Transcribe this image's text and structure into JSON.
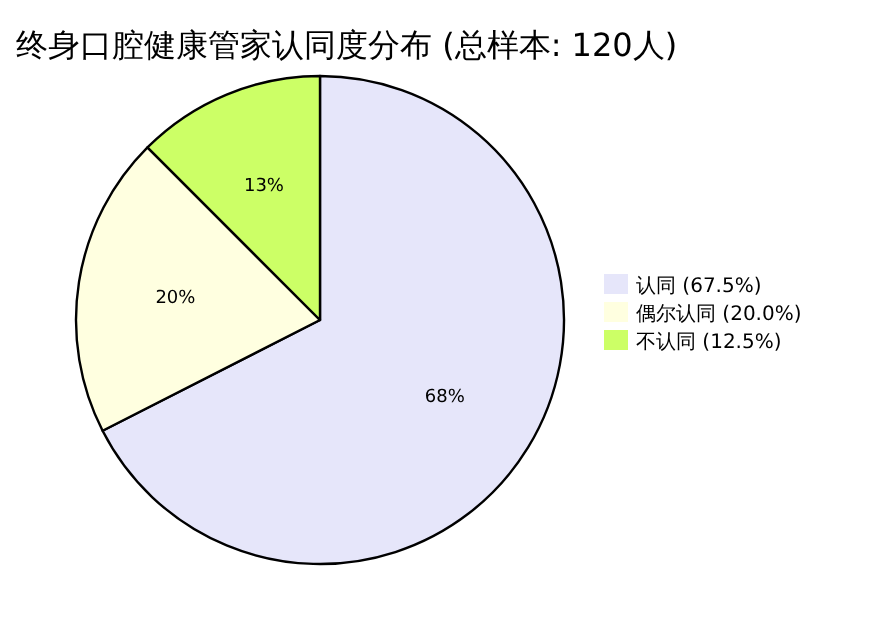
{
  "chart_data": {
    "type": "pie",
    "title": "终身口腔健康管家认同度分布 (总样本: 120人)",
    "categories": [
      "认同 (67.5%)",
      "偶尔认同 (20.0%)",
      "不认同 (12.5%)"
    ],
    "values": [
      67.5,
      20.0,
      12.5
    ],
    "colors": [
      "#e6e6fa",
      "#ffffe0",
      "#ccff66"
    ],
    "value_labels": [
      "68%",
      "20%",
      "13%"
    ],
    "legend": "right"
  }
}
